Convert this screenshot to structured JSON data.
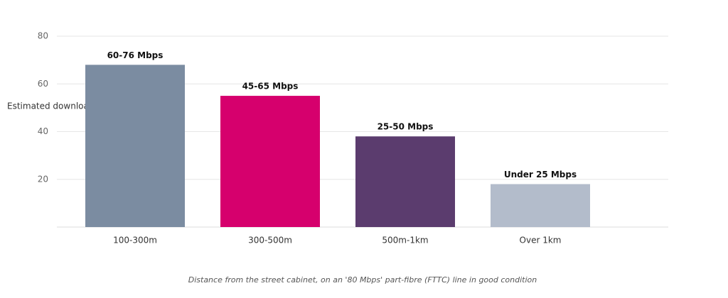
{
  "chart_data": {
    "type": "bar",
    "y_label": "Estimated downloa",
    "x_label": "Distance from the street cabinet, on an '80 Mbps' part-fibre (FTTC) line in good condition",
    "categories": [
      "100-300m",
      "300-500m",
      "500m-1km",
      "Over 1km"
    ],
    "values": [
      68,
      55,
      38,
      18
    ],
    "colors": [
      "#7b8ca1",
      "#d6006d",
      "#5b3c6e",
      "#b3bccb"
    ],
    "annotations": [
      "60-76 Mbps",
      "45-65 Mbps",
      "25-50 Mbps",
      "Under 25 Mbps"
    ],
    "ylim": [
      0,
      80
    ],
    "yticks": [
      20,
      40,
      60,
      80
    ],
    "grid": true
  }
}
